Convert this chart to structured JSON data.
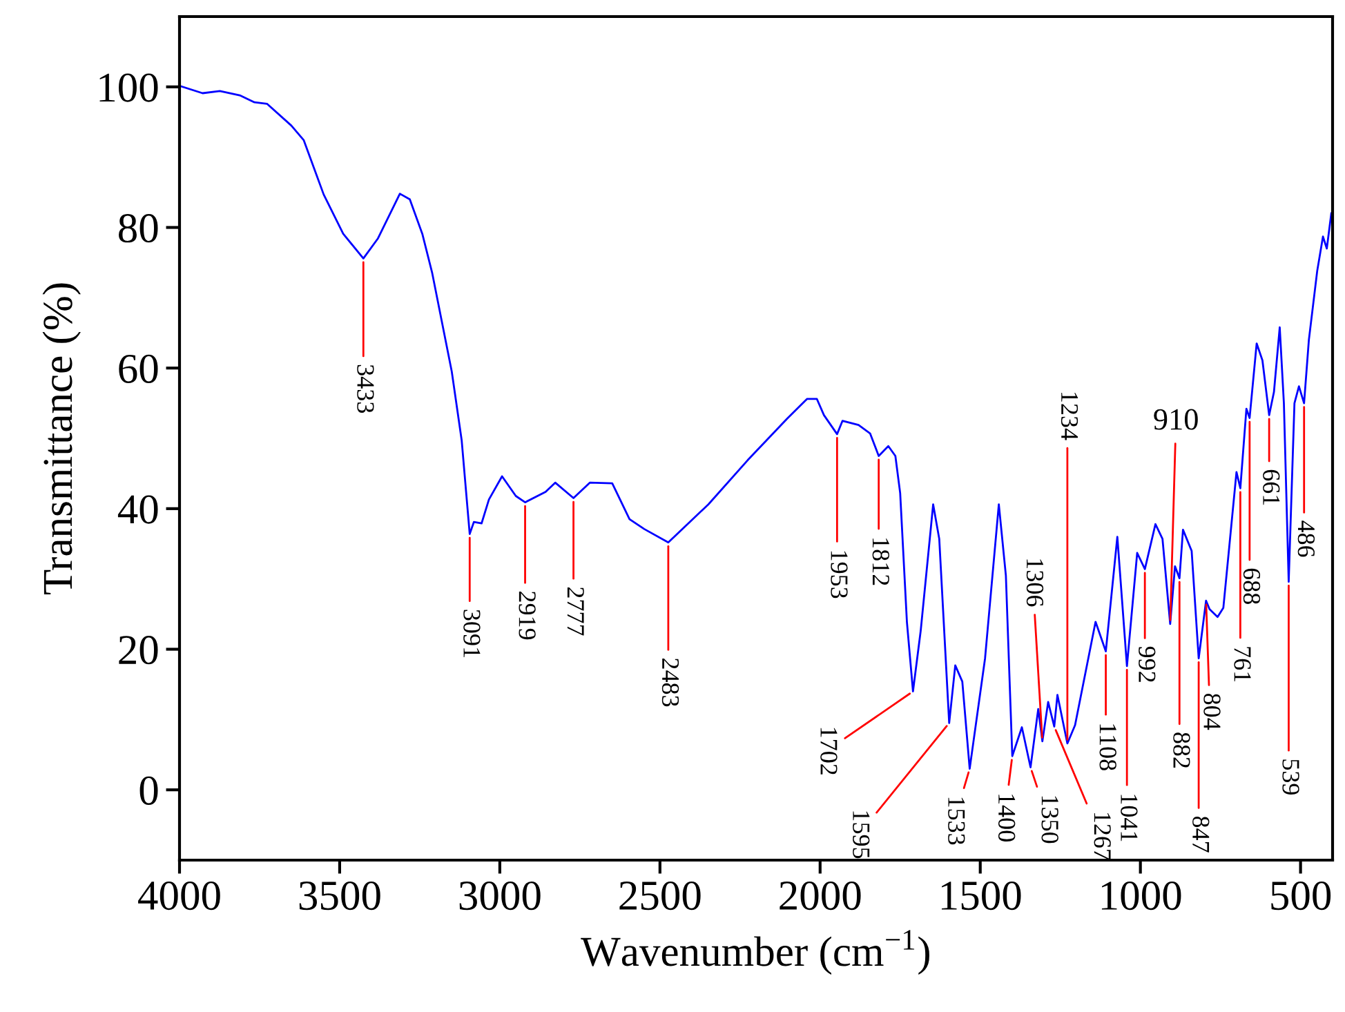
{
  "chart_data": {
    "type": "line",
    "xlabel": "Wavenumber (cm$^{−1}$)",
    "ylabel": "Transmittance (%)",
    "xlim": [
      4000,
      400
    ],
    "ylim": [
      -10,
      110
    ],
    "xticks": [
      4000,
      3500,
      3000,
      2500,
      2000,
      1500,
      1000,
      500
    ],
    "yticks": [
      0,
      20,
      40,
      60,
      80,
      100
    ],
    "grid": false,
    "legend": false,
    "marker": "none",
    "line_style": "solid",
    "series": [
      {
        "color": "#0000ff",
        "x": [
          3997,
          3928,
          3874,
          3812,
          3766,
          3727,
          3651,
          3612,
          3550,
          3489,
          3426,
          3381,
          3312,
          3281,
          3242,
          3211,
          3150,
          3119,
          3094,
          3081,
          3057,
          3034,
          2993,
          2950,
          2921,
          2857,
          2827,
          2770,
          2719,
          2649,
          2595,
          2549,
          2474,
          2349,
          2226,
          2103,
          2041,
          2010,
          1988,
          1947,
          1930,
          1880,
          1844,
          1817,
          1787,
          1765,
          1750,
          1729,
          1710,
          1686,
          1647,
          1628,
          1597,
          1578,
          1556,
          1533,
          1485,
          1442,
          1420,
          1400,
          1370,
          1343,
          1319,
          1306,
          1288,
          1269,
          1259,
          1228,
          1204,
          1140,
          1108,
          1072,
          1042,
          1010,
          986,
          953,
          931,
          907,
          892,
          878,
          867,
          840,
          818,
          795,
          784,
          759,
          741,
          700,
          688,
          669,
          659,
          637,
          619,
          598,
          583,
          565,
          552,
          537,
          519,
          505,
          489,
          474,
          448,
          430,
          418,
          404
        ],
        "values": [
          100.1,
          99.1,
          99.4,
          98.8,
          97.8,
          97.6,
          94.5,
          92.4,
          84.7,
          79.1,
          75.6,
          78.4,
          84.8,
          84,
          79.1,
          73.5,
          59.5,
          49.7,
          36.4,
          38.1,
          37.9,
          41.3,
          44.6,
          41.8,
          40.9,
          42.4,
          43.7,
          41.5,
          43.7,
          43.6,
          38.5,
          37.1,
          35.2,
          40.6,
          46.9,
          52.8,
          55.6,
          55.6,
          53.3,
          50.6,
          52.5,
          51.9,
          50.7,
          47.5,
          48.9,
          47.5,
          42.2,
          23.9,
          14,
          22.6,
          40.6,
          35.7,
          9.5,
          17.7,
          15.4,
          3,
          18.7,
          40.6,
          30.5,
          4.8,
          8.9,
          3.2,
          11.5,
          6.9,
          12.5,
          9,
          13.5,
          6.6,
          9.2,
          23.9,
          19.7,
          36,
          17.6,
          33.7,
          31.4,
          37.8,
          35.7,
          23.6,
          31.8,
          30.1,
          37,
          34,
          18.7,
          26.9,
          25.7,
          24.6,
          25.9,
          45.2,
          42.9,
          54.2,
          52.9,
          63.5,
          61.1,
          53.3,
          56.6,
          65.8,
          55,
          29.6,
          55,
          57.4,
          55,
          64,
          73.8,
          78.7,
          77,
          82
        ]
      }
    ],
    "annotations": [
      {
        "text": "3433",
        "x": 3426,
        "y": 75.6
      },
      {
        "text": "3091",
        "x": 3094,
        "y": 36.4
      },
      {
        "text": "2919",
        "x": 2921,
        "y": 40.9
      },
      {
        "text": "2777",
        "x": 2770,
        "y": 41.5
      },
      {
        "text": "2483",
        "x": 2474,
        "y": 35.2
      },
      {
        "text": "1953",
        "x": 1947,
        "y": 50.6
      },
      {
        "text": "1812",
        "x": 1817,
        "y": 47.5
      },
      {
        "text": "1702",
        "x": 1710,
        "y": 14
      },
      {
        "text": "1595",
        "x": 1597,
        "y": 9.5
      },
      {
        "text": "1533",
        "x": 1533,
        "y": 3
      },
      {
        "text": "1400",
        "x": 1400,
        "y": 4.8
      },
      {
        "text": "1350",
        "x": 1343,
        "y": 3.2
      },
      {
        "text": "1306",
        "x": 1306,
        "y": 6.9
      },
      {
        "text": "1267",
        "x": 1269,
        "y": 9
      },
      {
        "text": "1234",
        "x": 1228,
        "y": 6.6
      },
      {
        "text": "1108",
        "x": 1108,
        "y": 19.7
      },
      {
        "text": "1041",
        "x": 1042,
        "y": 17.6
      },
      {
        "text": "992",
        "x": 986,
        "y": 31.4
      },
      {
        "text": "910",
        "x": 907,
        "y": 23.6
      },
      {
        "text": "882",
        "x": 878,
        "y": 30.1
      },
      {
        "text": "847",
        "x": 818,
        "y": 18.7
      },
      {
        "text": "804",
        "x": 795,
        "y": 26.9
      },
      {
        "text": "761",
        "x": 688,
        "y": 42.9
      },
      {
        "text": "688",
        "x": 659,
        "y": 52.9
      },
      {
        "text": "661",
        "x": 598,
        "y": 53.3
      },
      {
        "text": "539",
        "x": 537,
        "y": 29.6
      },
      {
        "text": "486",
        "x": 489,
        "y": 55
      }
    ]
  }
}
